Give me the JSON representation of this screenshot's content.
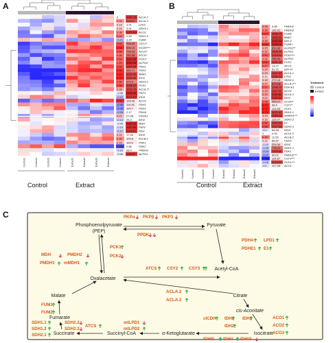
{
  "panelA": {
    "letter": "A",
    "group_labels": [
      "Control",
      "Extract"
    ],
    "col_labels": [
      "Control1",
      "Control2",
      "Control3",
      "Control4",
      "Extract1",
      "Extract2",
      "Extract3",
      "Extract4"
    ],
    "axis_titles": [
      "log2FC",
      "AveExpr"
    ],
    "genes": [
      "ACLA.2",
      "ACLA.3",
      "LPD1",
      "SDH1.1",
      "ACO1",
      "SDH2.3",
      "FUM2",
      "CSY2*",
      "mCDH***",
      "ACO3*",
      "ATCS*",
      "PCK1*",
      "mLPD2",
      "PDH1",
      "PDH2",
      "MAE1",
      "IDH1",
      "SDH2.2",
      "PCK2",
      "ACLA.2*",
      "PKP1",
      "IDH3",
      "ACO1",
      "PDH1",
      "PDH2",
      "PDHA",
      "PDHE1",
      "IDH2",
      "MDH",
      "PKP2",
      "PDH",
      "IDH3",
      "ACLB.2",
      "PDK1",
      "PDK2",
      "PMDH2",
      "MLPD1"
    ],
    "fc": [
      "0",
      "0.34",
      "0.14",
      "0.15",
      "0.36",
      "0.44",
      "-0.21",
      "0.53",
      "0.68",
      "0.54",
      "0.46",
      "0.52",
      "0.49",
      "0.56",
      "0.66",
      "0.69",
      "0.74",
      "0.50",
      "0.58",
      "0.26",
      "-0.06",
      "-0.21",
      "0.71",
      "-0.36",
      "-0.36",
      "-0.25",
      "0.22",
      "-0.14",
      "-0.05",
      "-0.10",
      "-0.17",
      "0.21",
      "0.36",
      "0.23",
      "-0.62",
      "-0.10",
      "-0.06"
    ],
    "ave": [
      "1087.15",
      "918.07",
      "3.91",
      "3.91",
      "1131.01",
      "2.83",
      "3.20",
      "708.09",
      "696.16",
      "718.33",
      "797.28",
      "1169.99",
      "1198.06",
      "1100.40",
      "663.71",
      "1034.98",
      "1032.84",
      "673.5",
      "1036.20",
      "1021.43",
      "1199.23",
      "1122.03",
      "108.46",
      "114.81",
      "104.7",
      "2.17",
      "27.08",
      "26.4",
      "1183.15",
      "1160.89",
      "1143.97",
      "17.94",
      "104.8",
      "114.6",
      "2.86",
      "25.4",
      "1143.0"
    ],
    "fc_legend": "Treatment"
  },
  "panelB": {
    "letter": "B",
    "group_labels": [
      "Control",
      "Extract"
    ],
    "col_labels": [
      "Control1",
      "Control2",
      "Control3",
      "Control4",
      "Extract1",
      "Extract2",
      "Extract3",
      "Extract4"
    ],
    "legend_title": "Treatment",
    "legend_items": [
      "Control",
      "Extract"
    ],
    "genes": [
      "PMDH1",
      "PMDH2",
      "FUM2",
      "MAE1",
      "IDH-V",
      "FUM1*",
      "mLPD2**",
      "mLPD1",
      "PCK2***",
      "mLPD1",
      "PCK2",
      "ATCS",
      "IDH-VI",
      "ACLA.2",
      "LPD1",
      "SDH2.1",
      "ACLA.2**",
      "PDH-E1",
      "ACO2",
      "ACLA.3",
      "IDH1",
      "mCDH*",
      "CSY2*",
      "PCK1",
      "SDH1.1",
      "mMDH1***",
      "SDH2.2",
      "E1",
      "SDH2.3",
      "IDH3",
      "ACLA.3",
      "ACLB.2",
      "PDH2",
      "IDH2",
      "SDH1.1",
      "PDK1",
      "PMDH2***",
      "CSY3***",
      "PCK1***",
      "ACO1"
    ],
    "fc": [
      "0.34",
      "0.39",
      "0.62",
      "0.27",
      "0.35",
      "0.68",
      "0.25",
      "0.31",
      "0.53",
      "0.32",
      "0.62",
      "0.47",
      "0.24",
      "0.23",
      "0.11",
      "0.18",
      "0.27",
      "0.51",
      "0.29",
      "0.32",
      "0.22",
      "0.46",
      "0.72",
      "0.74",
      "0.79",
      "0.19",
      "0.15",
      "0.54",
      "0.58",
      "-0.1",
      "0",
      "0.45",
      "0.12",
      "-0.10",
      "-0.18",
      "-0.24",
      "-0.27",
      "-1.58",
      "-0.16",
      "-0.1"
    ],
    "ave": [
      "3.65",
      "142.91",
      "1082.75",
      "1062.40",
      "1242.40",
      "1205.28",
      "654.39",
      "1006.44",
      "1018.94",
      "786.34",
      "1031.42",
      "19.27",
      "51.71",
      "1047.68",
      "1050.02",
      "272.16",
      "873.18",
      "1000.79",
      "1017.30",
      "1130.62",
      "1125.04",
      "405.27",
      "98.4",
      "113.83",
      "1071.47",
      "1089.08",
      "115.07",
      "1037.99",
      "1037.08",
      "64.99",
      "4.34",
      "11.55",
      "58.87",
      "204.34",
      "778.21",
      "1030.68",
      "90.01",
      "114.87",
      "1034.00",
      "117.26"
    ],
    "fc_legend": "log2FC"
  },
  "panelC": {
    "letter": "C",
    "metabolites": {
      "pep": "Phosphoenolpyruvate",
      "pep_abbr": "(PEP)",
      "pyruvate": "Pyruvate",
      "acetyl_coa": "Acetyl-CoA",
      "oxaloacetate": "Oxalacetate",
      "malate": "Malate",
      "citrate": "Citrate",
      "cis_aconitate": "cis-Aconitate",
      "fumarate": "Fumarate",
      "isocitrate": "Isocitrate",
      "succinate": "Succinate",
      "succinyl_coa": "Succinyl-CoA",
      "akg": "α-Ketoglutarate"
    },
    "enzymes": {
      "pkpa": "PKPα",
      "pkpb": "PKPβ",
      "pkp3": "PKP3",
      "ppdk": "PPDK",
      "pdha": "PDHA",
      "lpd1": "LPD1",
      "pdhe1": "PDHE1",
      "e1": "E1",
      "mdh": "MDH",
      "pmdh1": "PMDH1",
      "pmdh2": "PMDH2",
      "mmdh1": "mMDH1",
      "pck1": "PCK1",
      "pck2": "PCK2",
      "atcs": "ATCS",
      "csy2": "CSY2",
      "csy3": "CSY3",
      "acla2": "ACLA.2",
      "acla3": "ACLA.3",
      "fum1": "FUM1",
      "fum2": "FUM2",
      "aco1": "ACO1",
      "aco2": "ACO2",
      "aco3": "ACO3",
      "sdh11": "SDH1.1",
      "sdh12": "SDH1.2",
      "sdh21": "SDH2.1",
      "sdh22": "SDH2.2",
      "sdh23": "SDH2.3",
      "atcs2": "ATCS",
      "mlpd1": "mtLPD1",
      "mlpd2": "mtLPD2",
      "icdh": "cICDH",
      "idh3": "IDH3",
      "idh2": "IDH2",
      "idh1": "IDH1",
      "idhiii": "IDHIII",
      "idhv": "IDHV",
      "idhvi": "IDHVI"
    },
    "colors": {
      "enzyme": "#d6561b",
      "up": "#36a93a",
      "down": "#d43b69",
      "box_bg": "#fdfbe6"
    }
  }
}
